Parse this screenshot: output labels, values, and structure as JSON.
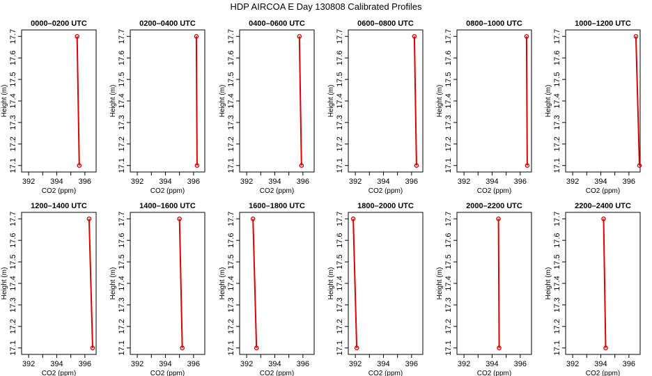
{
  "figure": {
    "title": "HDP AIRCOA E  Day 130808  Calibrated Profiles"
  },
  "chart_data": [
    {
      "type": "line",
      "title": "0000–0200 UTC",
      "xlabel": "CO2 (ppm)",
      "ylabel": "Height (m)",
      "xlim": [
        391.5,
        396.8
      ],
      "ylim": [
        17.07,
        17.73
      ],
      "x_ticks": [
        "392",
        "394",
        "396"
      ],
      "y_ticks": [
        "17.1",
        "17.2",
        "17.3",
        "17.4",
        "17.5",
        "17.6",
        "17.7"
      ],
      "grid": false,
      "series": [
        {
          "x": [
            395.45,
            395.6
          ],
          "y": [
            17.7,
            17.1
          ]
        }
      ]
    },
    {
      "type": "line",
      "title": "0200–0400 UTC",
      "xlabel": "CO2 (ppm)",
      "ylabel": "Height (m)",
      "xlim": [
        391.5,
        396.8
      ],
      "ylim": [
        17.07,
        17.73
      ],
      "x_ticks": [
        "392",
        "394",
        "396"
      ],
      "y_ticks": [
        "17.1",
        "17.2",
        "17.3",
        "17.4",
        "17.5",
        "17.6",
        "17.7"
      ],
      "grid": false,
      "series": [
        {
          "x": [
            396.2,
            396.25
          ],
          "y": [
            17.7,
            17.1
          ]
        }
      ]
    },
    {
      "type": "line",
      "title": "0400–0600 UTC",
      "xlabel": "CO2 (ppm)",
      "ylabel": "Height (m)",
      "xlim": [
        391.5,
        396.8
      ],
      "ylim": [
        17.07,
        17.73
      ],
      "x_ticks": [
        "392",
        "394",
        "396"
      ],
      "y_ticks": [
        "17.1",
        "17.2",
        "17.3",
        "17.4",
        "17.5",
        "17.6",
        "17.7"
      ],
      "grid": false,
      "series": [
        {
          "x": [
            395.75,
            395.9
          ],
          "y": [
            17.7,
            17.1
          ]
        }
      ]
    },
    {
      "type": "line",
      "title": "0600–0800 UTC",
      "xlabel": "CO2 (ppm)",
      "ylabel": "Height (m)",
      "xlim": [
        391.5,
        396.8
      ],
      "ylim": [
        17.07,
        17.73
      ],
      "x_ticks": [
        "392",
        "394",
        "396"
      ],
      "y_ticks": [
        "17.1",
        "17.2",
        "17.3",
        "17.4",
        "17.5",
        "17.6",
        "17.7"
      ],
      "grid": false,
      "series": [
        {
          "x": [
            396.2,
            396.35
          ],
          "y": [
            17.7,
            17.1
          ]
        }
      ]
    },
    {
      "type": "line",
      "title": "0800–1000 UTC",
      "xlabel": "CO2 (ppm)",
      "ylabel": "Height (m)",
      "xlim": [
        391.5,
        396.8
      ],
      "ylim": [
        17.07,
        17.73
      ],
      "x_ticks": [
        "392",
        "394",
        "396"
      ],
      "y_ticks": [
        "17.1",
        "17.2",
        "17.3",
        "17.4",
        "17.5",
        "17.6",
        "17.7"
      ],
      "grid": false,
      "series": [
        {
          "x": [
            396.45,
            396.5
          ],
          "y": [
            17.7,
            17.1
          ]
        }
      ]
    },
    {
      "type": "line",
      "title": "1000–1200 UTC",
      "xlabel": "CO2 (ppm)",
      "ylabel": "Height (m)",
      "xlim": [
        391.5,
        396.8
      ],
      "ylim": [
        17.07,
        17.73
      ],
      "x_ticks": [
        "392",
        "394",
        "396"
      ],
      "y_ticks": [
        "17.1",
        "17.2",
        "17.3",
        "17.4",
        "17.5",
        "17.6",
        "17.7"
      ],
      "grid": false,
      "series": [
        {
          "x": [
            396.5,
            396.75
          ],
          "y": [
            17.7,
            17.1
          ]
        }
      ]
    },
    {
      "type": "line",
      "title": "1200–1400 UTC",
      "xlabel": "CO2 (ppm)",
      "ylabel": "Height (m)",
      "xlim": [
        391.5,
        396.8
      ],
      "ylim": [
        17.07,
        17.73
      ],
      "x_ticks": [
        "392",
        "394",
        "396"
      ],
      "y_ticks": [
        "17.1",
        "17.2",
        "17.3",
        "17.4",
        "17.5",
        "17.6",
        "17.7"
      ],
      "grid": false,
      "series": [
        {
          "x": [
            396.3,
            396.55
          ],
          "y": [
            17.7,
            17.1
          ]
        }
      ]
    },
    {
      "type": "line",
      "title": "1400–1600 UTC",
      "xlabel": "CO2 (ppm)",
      "ylabel": "Height (m)",
      "xlim": [
        391.5,
        396.8
      ],
      "ylim": [
        17.07,
        17.73
      ],
      "x_ticks": [
        "392",
        "394",
        "396"
      ],
      "y_ticks": [
        "17.1",
        "17.2",
        "17.3",
        "17.4",
        "17.5",
        "17.6",
        "17.7"
      ],
      "grid": false,
      "series": [
        {
          "x": [
            395.0,
            395.2
          ],
          "y": [
            17.7,
            17.1
          ]
        }
      ]
    },
    {
      "type": "line",
      "title": "1600–1800 UTC",
      "xlabel": "CO2 (ppm)",
      "ylabel": "Height (m)",
      "xlim": [
        391.5,
        396.8
      ],
      "ylim": [
        17.07,
        17.73
      ],
      "x_ticks": [
        "392",
        "394",
        "396"
      ],
      "y_ticks": [
        "17.1",
        "17.2",
        "17.3",
        "17.4",
        "17.5",
        "17.6",
        "17.7"
      ],
      "grid": false,
      "series": [
        {
          "x": [
            392.45,
            392.7
          ],
          "y": [
            17.7,
            17.1
          ]
        }
      ]
    },
    {
      "type": "line",
      "title": "1800–2000 UTC",
      "xlabel": "CO2 (ppm)",
      "ylabel": "Height (m)",
      "xlim": [
        391.5,
        396.8
      ],
      "ylim": [
        17.07,
        17.73
      ],
      "x_ticks": [
        "392",
        "394",
        "396"
      ],
      "y_ticks": [
        "17.1",
        "17.2",
        "17.3",
        "17.4",
        "17.5",
        "17.6",
        "17.7"
      ],
      "grid": false,
      "series": [
        {
          "x": [
            391.85,
            392.1
          ],
          "y": [
            17.7,
            17.1
          ]
        }
      ]
    },
    {
      "type": "line",
      "title": "2000–2200 UTC",
      "xlabel": "CO2 (ppm)",
      "ylabel": "Height (m)",
      "xlim": [
        391.5,
        396.8
      ],
      "ylim": [
        17.07,
        17.73
      ],
      "x_ticks": [
        "392",
        "394",
        "396"
      ],
      "y_ticks": [
        "17.1",
        "17.2",
        "17.3",
        "17.4",
        "17.5",
        "17.6",
        "17.7"
      ],
      "grid": false,
      "series": [
        {
          "x": [
            394.45,
            394.5
          ],
          "y": [
            17.7,
            17.1
          ]
        }
      ]
    },
    {
      "type": "line",
      "title": "2200–2400 UTC",
      "xlabel": "CO2 (ppm)",
      "ylabel": "Height (m)",
      "xlim": [
        391.5,
        396.8
      ],
      "ylim": [
        17.07,
        17.73
      ],
      "x_ticks": [
        "392",
        "394",
        "396"
      ],
      "y_ticks": [
        "17.1",
        "17.2",
        "17.3",
        "17.4",
        "17.5",
        "17.6",
        "17.7"
      ],
      "grid": false,
      "series": [
        {
          "x": [
            394.2,
            394.35
          ],
          "y": [
            17.7,
            17.1
          ]
        }
      ]
    }
  ],
  "colors": {
    "series": "#dd0000",
    "axis": "#000000",
    "background": "#ffffff"
  }
}
